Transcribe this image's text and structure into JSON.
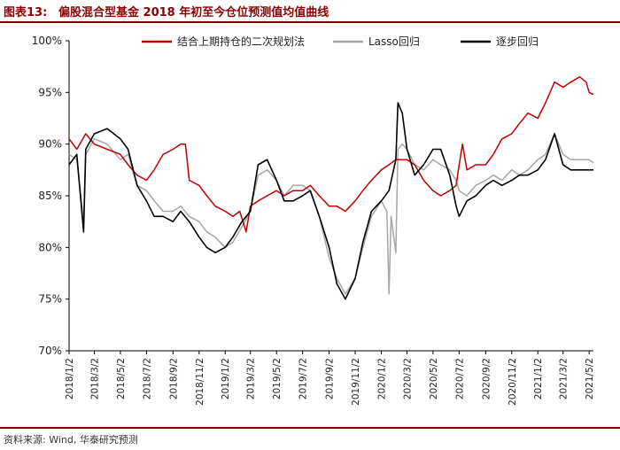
{
  "header": {
    "figure_label": "图表13:",
    "title": "偏股混合型基金 2018 年初至今仓位预测值均值曲线"
  },
  "footer": {
    "source": "资料来源: Wind, 华泰研究预测"
  },
  "colors": {
    "accent": "#8b0000",
    "series_red": "#c00000",
    "series_gray": "#a6a6a6",
    "series_black": "#000000"
  },
  "chart_data": {
    "type": "line",
    "ylim": [
      0.7,
      1.0
    ],
    "yticks": [
      0.7,
      0.75,
      0.8,
      0.85,
      0.9,
      0.95,
      1.0
    ],
    "ytick_labels": [
      "70%",
      "75%",
      "80%",
      "85%",
      "90%",
      "95%",
      "100%"
    ],
    "xticks": [
      "2018/1/2",
      "2018/3/2",
      "2018/5/2",
      "2018/7/2",
      "2018/9/2",
      "2018/11/2",
      "2019/1/2",
      "2019/3/2",
      "2019/5/2",
      "2019/7/2",
      "2019/9/2",
      "2019/11/2",
      "2020/1/2",
      "2020/3/2",
      "2020/5/2",
      "2020/7/2",
      "2020/9/2",
      "2020/11/2",
      "2021/1/2",
      "2021/3/2",
      "2021/5/2"
    ],
    "legend_placement": "top",
    "series": [
      {
        "name": "结合上期持仓的二次规划法",
        "color": "#c00000",
        "points": [
          [
            "2018/1/2",
            0.905
          ],
          [
            "2018/1/20",
            0.895
          ],
          [
            "2018/2/10",
            0.91
          ],
          [
            "2018/3/2",
            0.9
          ],
          [
            "2018/4/1",
            0.895
          ],
          [
            "2018/5/2",
            0.89
          ],
          [
            "2018/5/20",
            0.88
          ],
          [
            "2018/6/10",
            0.87
          ],
          [
            "2018/7/2",
            0.865
          ],
          [
            "2018/7/20",
            0.875
          ],
          [
            "2018/8/10",
            0.89
          ],
          [
            "2018/9/2",
            0.895
          ],
          [
            "2018/9/20",
            0.9
          ],
          [
            "2018/10/1",
            0.9
          ],
          [
            "2018/10/10",
            0.865
          ],
          [
            "2018/11/2",
            0.86
          ],
          [
            "2018/11/20",
            0.85
          ],
          [
            "2018/12/10",
            0.84
          ],
          [
            "2019/1/2",
            0.835
          ],
          [
            "2019/1/20",
            0.83
          ],
          [
            "2019/2/5",
            0.835
          ],
          [
            "2019/2/20",
            0.815
          ],
          [
            "2019/3/2",
            0.84
          ],
          [
            "2019/3/20",
            0.845
          ],
          [
            "2019/4/10",
            0.85
          ],
          [
            "2019/5/2",
            0.855
          ],
          [
            "2019/5/20",
            0.85
          ],
          [
            "2019/6/10",
            0.855
          ],
          [
            "2019/7/2",
            0.855
          ],
          [
            "2019/7/20",
            0.86
          ],
          [
            "2019/8/10",
            0.85
          ],
          [
            "2019/9/2",
            0.84
          ],
          [
            "2019/9/20",
            0.84
          ],
          [
            "2019/10/10",
            0.835
          ],
          [
            "2019/11/2",
            0.845
          ],
          [
            "2019/11/20",
            0.855
          ],
          [
            "2019/12/10",
            0.865
          ],
          [
            "2020/1/2",
            0.875
          ],
          [
            "2020/1/20",
            0.88
          ],
          [
            "2020/2/5",
            0.885
          ],
          [
            "2020/2/20",
            0.885
          ],
          [
            "2020/3/2",
            0.885
          ],
          [
            "2020/3/20",
            0.88
          ],
          [
            "2020/4/10",
            0.865
          ],
          [
            "2020/5/2",
            0.855
          ],
          [
            "2020/5/20",
            0.85
          ],
          [
            "2020/6/10",
            0.855
          ],
          [
            "2020/6/25",
            0.86
          ],
          [
            "2020/7/2",
            0.88
          ],
          [
            "2020/7/10",
            0.9
          ],
          [
            "2020/7/20",
            0.875
          ],
          [
            "2020/8/10",
            0.88
          ],
          [
            "2020/9/2",
            0.88
          ],
          [
            "2020/9/20",
            0.89
          ],
          [
            "2020/10/10",
            0.905
          ],
          [
            "2020/11/2",
            0.91
          ],
          [
            "2020/11/20",
            0.92
          ],
          [
            "2020/12/10",
            0.93
          ],
          [
            "2021/1/2",
            0.925
          ],
          [
            "2021/1/20",
            0.94
          ],
          [
            "2021/2/10",
            0.96
          ],
          [
            "2021/3/2",
            0.955
          ],
          [
            "2021/3/20",
            0.96
          ],
          [
            "2021/4/10",
            0.965
          ],
          [
            "2021/4/25",
            0.96
          ],
          [
            "2021/5/2",
            0.95
          ],
          [
            "2021/5/12",
            0.948
          ]
        ]
      },
      {
        "name": "Lasso回归",
        "color": "#a6a6a6",
        "points": [
          [
            "2018/1/2",
            0.89
          ],
          [
            "2018/1/20",
            0.885
          ],
          [
            "2018/2/5",
            0.825
          ],
          [
            "2018/2/10",
            0.89
          ],
          [
            "2018/3/2",
            0.905
          ],
          [
            "2018/4/1",
            0.9
          ],
          [
            "2018/5/2",
            0.885
          ],
          [
            "2018/5/20",
            0.89
          ],
          [
            "2018/6/10",
            0.86
          ],
          [
            "2018/7/2",
            0.855
          ],
          [
            "2018/7/20",
            0.845
          ],
          [
            "2018/8/10",
            0.835
          ],
          [
            "2018/9/2",
            0.835
          ],
          [
            "2018/9/20",
            0.84
          ],
          [
            "2018/10/10",
            0.83
          ],
          [
            "2018/11/2",
            0.825
          ],
          [
            "2018/11/20",
            0.815
          ],
          [
            "2018/12/10",
            0.81
          ],
          [
            "2019/1/2",
            0.8
          ],
          [
            "2019/1/20",
            0.805
          ],
          [
            "2019/2/10",
            0.82
          ],
          [
            "2019/3/2",
            0.835
          ],
          [
            "2019/3/20",
            0.87
          ],
          [
            "2019/4/10",
            0.875
          ],
          [
            "2019/5/2",
            0.865
          ],
          [
            "2019/5/20",
            0.85
          ],
          [
            "2019/6/10",
            0.86
          ],
          [
            "2019/7/2",
            0.86
          ],
          [
            "2019/7/20",
            0.855
          ],
          [
            "2019/8/10",
            0.83
          ],
          [
            "2019/9/2",
            0.79
          ],
          [
            "2019/9/20",
            0.77
          ],
          [
            "2019/10/10",
            0.755
          ],
          [
            "2019/11/2",
            0.77
          ],
          [
            "2019/11/20",
            0.8
          ],
          [
            "2019/12/10",
            0.83
          ],
          [
            "2020/1/2",
            0.845
          ],
          [
            "2020/1/15",
            0.835
          ],
          [
            "2020/1/20",
            0.755
          ],
          [
            "2020/1/25",
            0.83
          ],
          [
            "2020/2/5",
            0.795
          ],
          [
            "2020/2/10",
            0.895
          ],
          [
            "2020/2/20",
            0.9
          ],
          [
            "2020/3/2",
            0.895
          ],
          [
            "2020/3/20",
            0.88
          ],
          [
            "2020/4/10",
            0.875
          ],
          [
            "2020/5/2",
            0.885
          ],
          [
            "2020/5/20",
            0.88
          ],
          [
            "2020/6/10",
            0.875
          ],
          [
            "2020/6/25",
            0.865
          ],
          [
            "2020/7/2",
            0.855
          ],
          [
            "2020/7/20",
            0.85
          ],
          [
            "2020/8/10",
            0.86
          ],
          [
            "2020/9/2",
            0.865
          ],
          [
            "2020/9/20",
            0.87
          ],
          [
            "2020/10/10",
            0.865
          ],
          [
            "2020/11/2",
            0.875
          ],
          [
            "2020/11/20",
            0.87
          ],
          [
            "2020/12/10",
            0.875
          ],
          [
            "2021/1/2",
            0.885
          ],
          [
            "2021/1/20",
            0.89
          ],
          [
            "2021/2/10",
            0.91
          ],
          [
            "2021/3/2",
            0.89
          ],
          [
            "2021/3/20",
            0.885
          ],
          [
            "2021/4/10",
            0.885
          ],
          [
            "2021/5/2",
            0.885
          ],
          [
            "2021/5/12",
            0.882
          ]
        ]
      },
      {
        "name": "逐步回归",
        "color": "#000000",
        "points": [
          [
            "2018/1/2",
            0.88
          ],
          [
            "2018/1/20",
            0.89
          ],
          [
            "2018/2/5",
            0.815
          ],
          [
            "2018/2/10",
            0.895
          ],
          [
            "2018/3/2",
            0.91
          ],
          [
            "2018/4/1",
            0.915
          ],
          [
            "2018/5/2",
            0.905
          ],
          [
            "2018/5/20",
            0.895
          ],
          [
            "2018/6/10",
            0.86
          ],
          [
            "2018/7/2",
            0.845
          ],
          [
            "2018/7/20",
            0.83
          ],
          [
            "2018/8/10",
            0.83
          ],
          [
            "2018/9/2",
            0.825
          ],
          [
            "2018/9/20",
            0.835
          ],
          [
            "2018/10/10",
            0.825
          ],
          [
            "2018/11/2",
            0.81
          ],
          [
            "2018/11/20",
            0.8
          ],
          [
            "2018/12/10",
            0.795
          ],
          [
            "2019/1/2",
            0.8
          ],
          [
            "2019/1/20",
            0.81
          ],
          [
            "2019/2/10",
            0.825
          ],
          [
            "2019/3/2",
            0.835
          ],
          [
            "2019/3/20",
            0.88
          ],
          [
            "2019/4/10",
            0.885
          ],
          [
            "2019/5/2",
            0.865
          ],
          [
            "2019/5/20",
            0.845
          ],
          [
            "2019/6/10",
            0.845
          ],
          [
            "2019/7/2",
            0.85
          ],
          [
            "2019/7/20",
            0.855
          ],
          [
            "2019/8/10",
            0.83
          ],
          [
            "2019/9/2",
            0.8
          ],
          [
            "2019/9/20",
            0.765
          ],
          [
            "2019/10/10",
            0.75
          ],
          [
            "2019/11/2",
            0.77
          ],
          [
            "2019/11/20",
            0.805
          ],
          [
            "2019/12/10",
            0.835
          ],
          [
            "2020/1/2",
            0.845
          ],
          [
            "2020/1/20",
            0.855
          ],
          [
            "2020/2/5",
            0.885
          ],
          [
            "2020/2/10",
            0.94
          ],
          [
            "2020/2/20",
            0.93
          ],
          [
            "2020/3/2",
            0.895
          ],
          [
            "2020/3/20",
            0.87
          ],
          [
            "2020/4/10",
            0.88
          ],
          [
            "2020/5/2",
            0.895
          ],
          [
            "2020/5/20",
            0.895
          ],
          [
            "2020/6/10",
            0.87
          ],
          [
            "2020/6/25",
            0.84
          ],
          [
            "2020/7/2",
            0.83
          ],
          [
            "2020/7/20",
            0.845
          ],
          [
            "2020/8/10",
            0.85
          ],
          [
            "2020/9/2",
            0.86
          ],
          [
            "2020/9/20",
            0.865
          ],
          [
            "2020/10/10",
            0.86
          ],
          [
            "2020/11/2",
            0.865
          ],
          [
            "2020/11/20",
            0.87
          ],
          [
            "2020/12/10",
            0.87
          ],
          [
            "2021/1/2",
            0.875
          ],
          [
            "2021/1/20",
            0.885
          ],
          [
            "2021/2/10",
            0.91
          ],
          [
            "2021/3/2",
            0.88
          ],
          [
            "2021/3/20",
            0.875
          ],
          [
            "2021/4/10",
            0.875
          ],
          [
            "2021/5/2",
            0.875
          ],
          [
            "2021/5/12",
            0.875
          ]
        ]
      }
    ]
  }
}
